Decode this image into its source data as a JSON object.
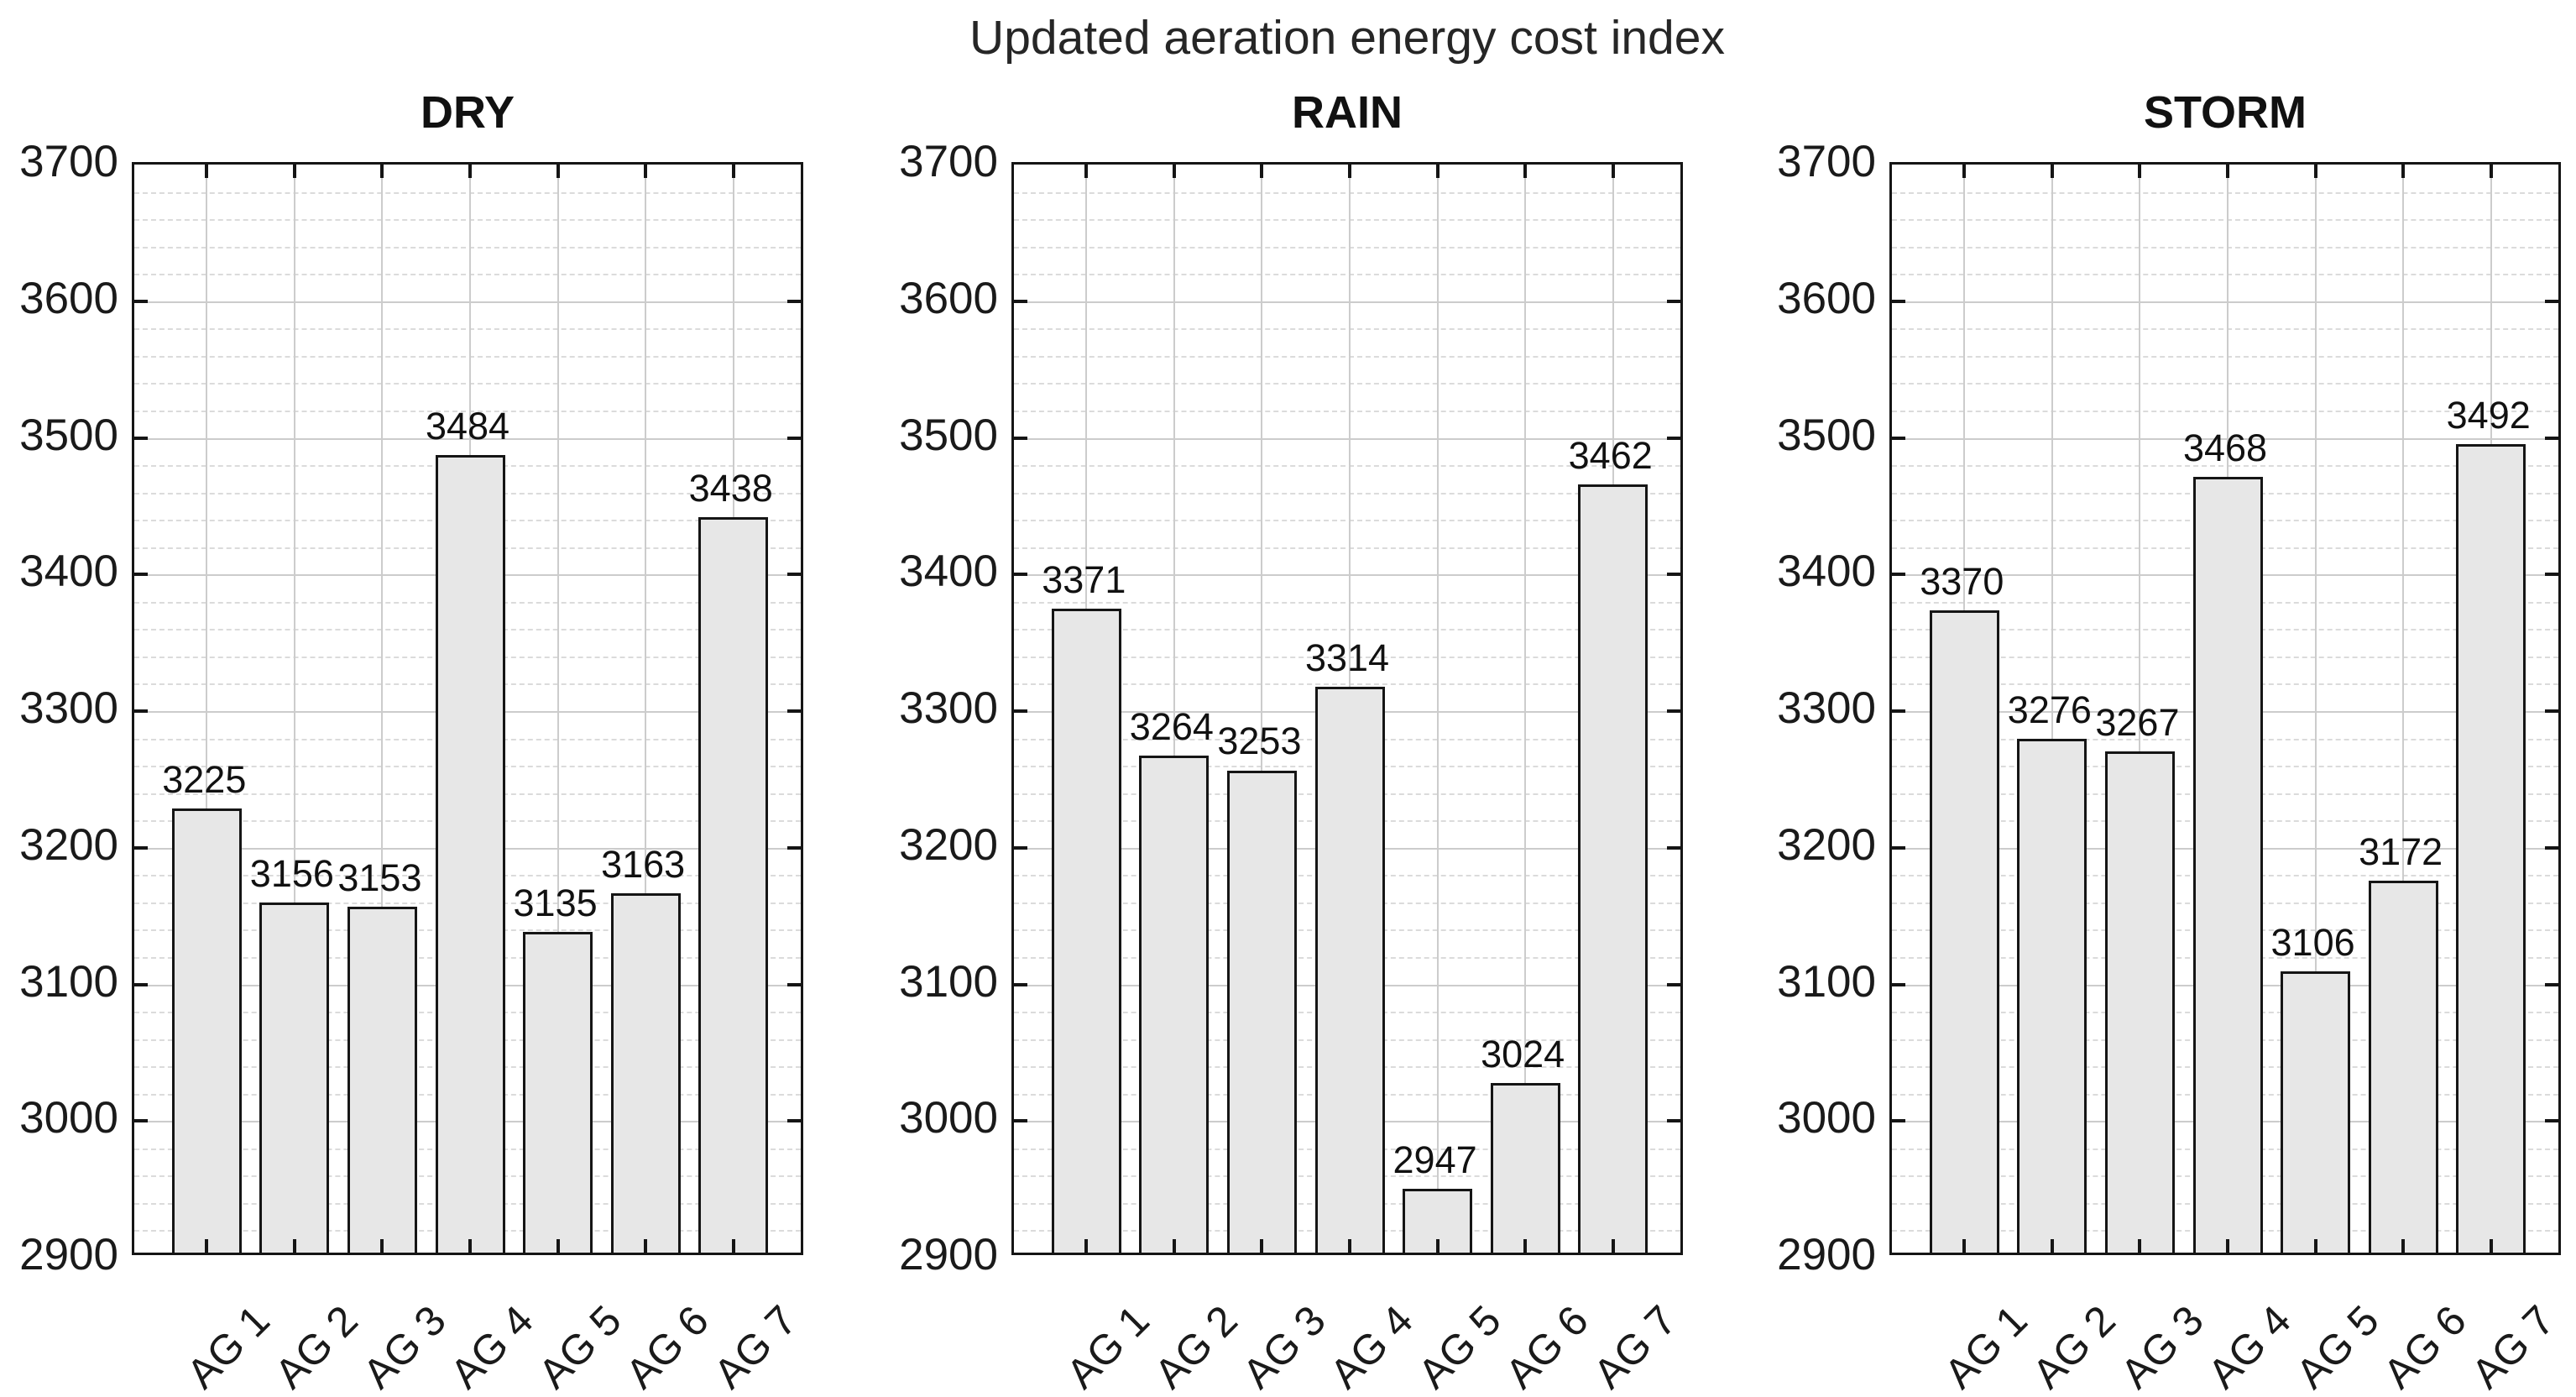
{
  "figure": {
    "title": "Updated aeration energy cost index"
  },
  "style": {
    "background": "#ffffff",
    "axis_color": "#151515",
    "text_color": "#1a1a1a",
    "grid_major_color": "#cccccc",
    "grid_minor_color": "#dbdbdb",
    "bar_fill": "#e7e7e7",
    "bar_edge": "#151515"
  },
  "chart_data": [
    {
      "type": "bar",
      "title": "DRY",
      "categories": [
        "AG 1",
        "AG 2",
        "AG 3",
        "AG 4",
        "AG 5",
        "AG 6",
        "AG 7"
      ],
      "values": [
        3225,
        3156,
        3153,
        3484,
        3135,
        3163,
        3438
      ],
      "bar_labels": [
        "3225",
        "3156",
        "3153",
        "3484",
        "3135",
        "3163",
        "3438"
      ],
      "ylim": [
        2900,
        3700
      ],
      "ytick_step": 100,
      "yminor_step": 20,
      "ytick_labels": [
        "2900",
        "3000",
        "3100",
        "3200",
        "3300",
        "3400",
        "3500",
        "3600",
        "3700"
      ],
      "grid": true,
      "legend": null
    },
    {
      "type": "bar",
      "title": "RAIN",
      "categories": [
        "AG 1",
        "AG 2",
        "AG 3",
        "AG 4",
        "AG 5",
        "AG 6",
        "AG 7"
      ],
      "values": [
        3371,
        3264,
        3253,
        3314,
        2947,
        3024,
        3462
      ],
      "bar_labels": [
        "3371",
        "3264",
        "3253",
        "3314",
        "2947",
        "3024",
        "3462"
      ],
      "ylim": [
        2900,
        3700
      ],
      "ytick_step": 100,
      "yminor_step": 20,
      "ytick_labels": [
        "2900",
        "3000",
        "3100",
        "3200",
        "3300",
        "3400",
        "3500",
        "3600",
        "3700"
      ],
      "grid": true,
      "legend": null
    },
    {
      "type": "bar",
      "title": "STORM",
      "categories": [
        "AG 1",
        "AG 2",
        "AG 3",
        "AG 4",
        "AG 5",
        "AG 6",
        "AG 7"
      ],
      "values": [
        3370,
        3276,
        3267,
        3468,
        3106,
        3172,
        3492
      ],
      "bar_labels": [
        "3370",
        "3276",
        "3267",
        "3468",
        "3106",
        "3172",
        "3492"
      ],
      "ylim": [
        2900,
        3700
      ],
      "ytick_step": 100,
      "yminor_step": 20,
      "ytick_labels": [
        "2900",
        "3000",
        "3100",
        "3200",
        "3300",
        "3400",
        "3500",
        "3600",
        "3700"
      ],
      "grid": true,
      "legend": null
    }
  ]
}
